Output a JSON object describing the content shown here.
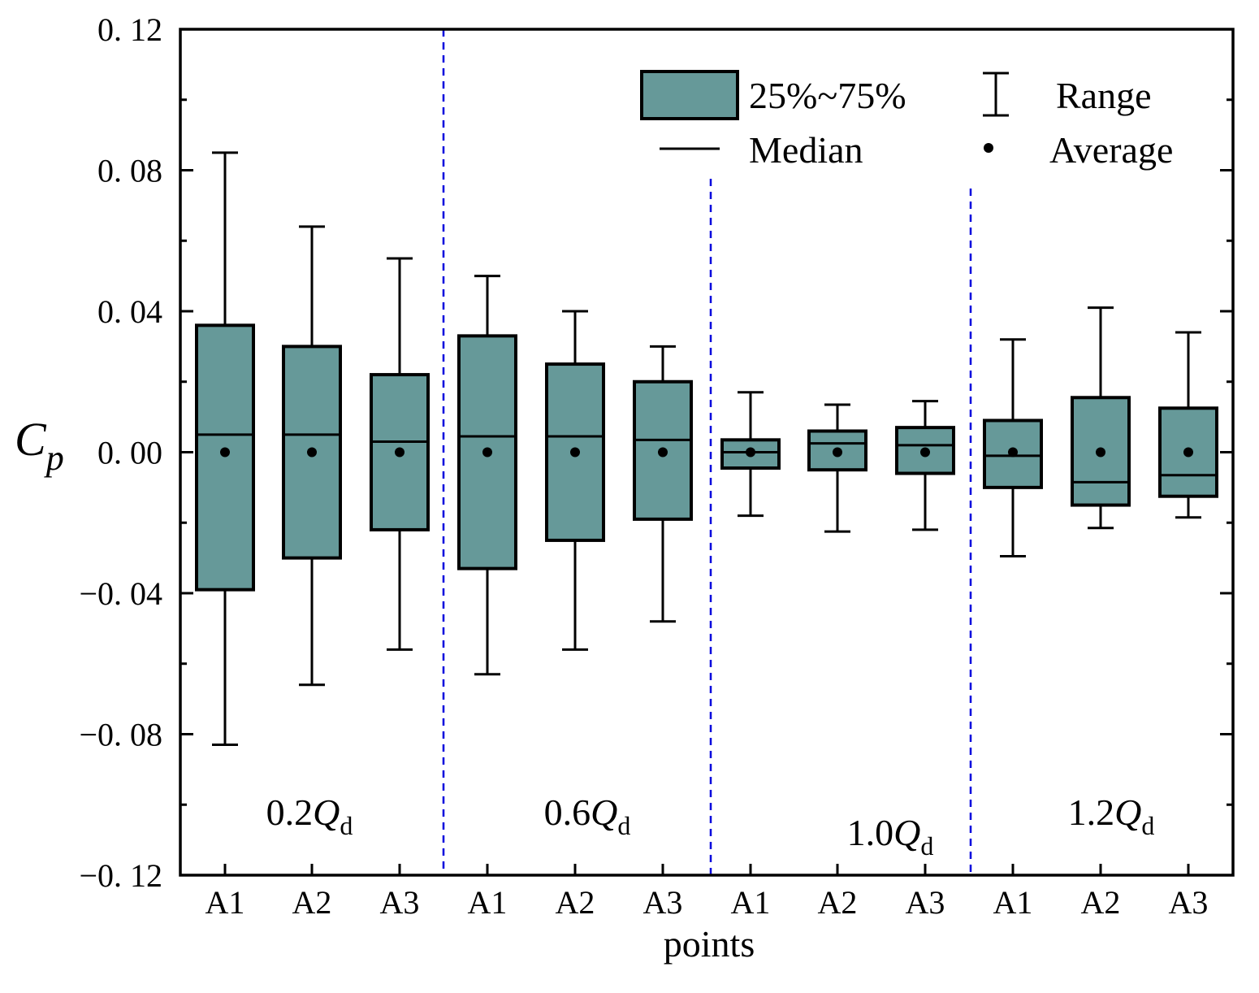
{
  "chart_data": {
    "type": "boxplot",
    "xlabel": "points",
    "ylabel": {
      "main": "C",
      "sub": "p"
    },
    "ylim": [
      -0.12,
      0.12
    ],
    "yticks": [
      {
        "v": 0.12,
        "label": "0. 12"
      },
      {
        "v": 0.08,
        "label": "0. 08"
      },
      {
        "v": 0.04,
        "label": "0. 04"
      },
      {
        "v": 0.0,
        "label": "0. 00"
      },
      {
        "v": -0.04,
        "label": "−0. 04"
      },
      {
        "v": -0.08,
        "label": "−0. 08"
      },
      {
        "v": -0.12,
        "label": "−0. 12"
      }
    ],
    "groups": [
      {
        "prefix": "0.2",
        "q": "Q",
        "sub": "d",
        "points": [
          {
            "label": "A1",
            "min": -0.083,
            "q1": -0.039,
            "median": 0.005,
            "q3": 0.036,
            "max": 0.085,
            "mean": 0.0
          },
          {
            "label": "A2",
            "min": -0.066,
            "q1": -0.03,
            "median": 0.005,
            "q3": 0.03,
            "max": 0.064,
            "mean": 0.0
          },
          {
            "label": "A3",
            "min": -0.056,
            "q1": -0.022,
            "median": 0.003,
            "q3": 0.022,
            "max": 0.055,
            "mean": 0.0
          }
        ]
      },
      {
        "prefix": "0.6",
        "q": "Q",
        "sub": "d",
        "points": [
          {
            "label": "A1",
            "min": -0.063,
            "q1": -0.033,
            "median": 0.0045,
            "q3": 0.033,
            "max": 0.05,
            "mean": 0.0
          },
          {
            "label": "A2",
            "min": -0.056,
            "q1": -0.025,
            "median": 0.0045,
            "q3": 0.025,
            "max": 0.04,
            "mean": 0.0
          },
          {
            "label": "A3",
            "min": -0.048,
            "q1": -0.019,
            "median": 0.0035,
            "q3": 0.02,
            "max": 0.03,
            "mean": 0.0
          }
        ]
      },
      {
        "prefix": "1.0",
        "q": "Q",
        "sub": "d",
        "points": [
          {
            "label": "A1",
            "min": -0.018,
            "q1": -0.0045,
            "median": 0.0,
            "q3": 0.0035,
            "max": 0.017,
            "mean": 0.0
          },
          {
            "label": "A2",
            "min": -0.0225,
            "q1": -0.005,
            "median": 0.0025,
            "q3": 0.006,
            "max": 0.0135,
            "mean": 0.0
          },
          {
            "label": "A3",
            "min": -0.022,
            "q1": -0.006,
            "median": 0.002,
            "q3": 0.007,
            "max": 0.0145,
            "mean": 0.0
          }
        ]
      },
      {
        "prefix": "1.2",
        "q": "Q",
        "sub": "d",
        "points": [
          {
            "label": "A1",
            "min": -0.0295,
            "q1": -0.01,
            "median": -0.001,
            "q3": 0.009,
            "max": 0.032,
            "mean": 0.0
          },
          {
            "label": "A2",
            "min": -0.0215,
            "q1": -0.015,
            "median": -0.0085,
            "q3": 0.0155,
            "max": 0.041,
            "mean": 0.0
          },
          {
            "label": "A3",
            "min": -0.0185,
            "q1": -0.0125,
            "median": -0.0065,
            "q3": 0.0125,
            "max": 0.034,
            "mean": 0.0
          }
        ]
      }
    ],
    "legend": {
      "box": "25%~75%",
      "range": "Range",
      "median": "Median",
      "average": "Average",
      "position": "top-right"
    },
    "colors": {
      "box_fill": "#669999",
      "stroke": "#000000",
      "divider": "#0000dd"
    }
  }
}
